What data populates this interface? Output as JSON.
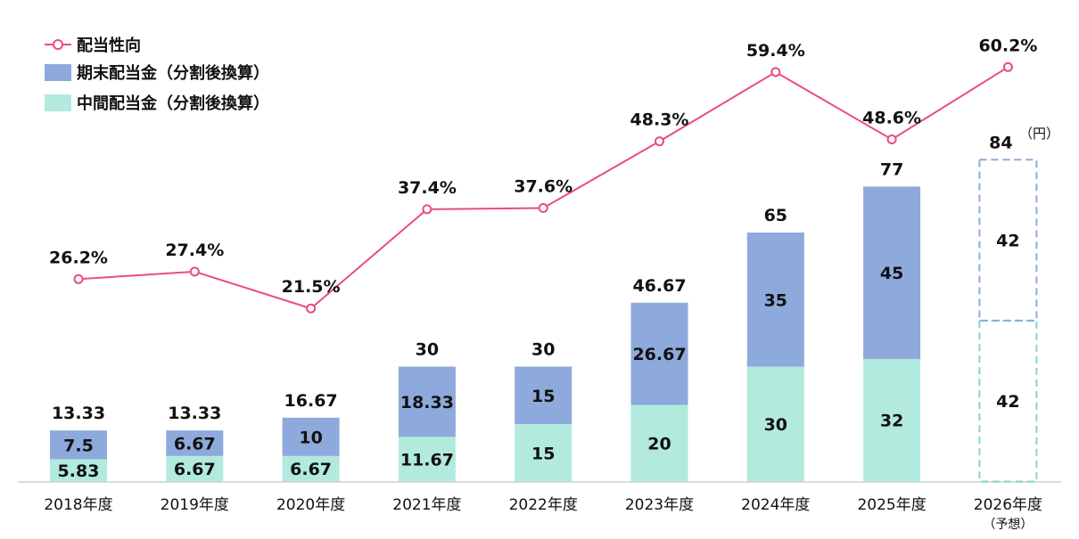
{
  "legend": {
    "payout": "配当性向",
    "year_end": "期末配当金（分割後換算）",
    "interim": "中間配当金（分割後換算）"
  },
  "unit_label": "（円）",
  "colors": {
    "year_end": "#8ea9db",
    "interim": "#b2eade",
    "payout_line": "#ea4d7c",
    "forecast_year_end_border": "#8eaadc",
    "forecast_interim_border": "#7fd8c8",
    "axis": "#cfcfcf",
    "text": "#111111"
  },
  "chart_data": {
    "type": "bar",
    "stacked": true,
    "categories": [
      "2018年度",
      "2019年度",
      "2020年度",
      "2021年度",
      "2022年度",
      "2023年度",
      "2024年度",
      "2025年度",
      "2026年度"
    ],
    "forecast_note": "（予想）",
    "forecast_index": 8,
    "series": [
      {
        "name": "中間配当金（分割後換算）",
        "values": [
          5.83,
          6.67,
          6.67,
          11.67,
          15,
          20,
          30,
          32,
          42
        ],
        "labels": [
          "5.83",
          "6.67",
          "6.67",
          "11.67",
          "15",
          "20",
          "30",
          "32",
          "42"
        ]
      },
      {
        "name": "期末配当金（分割後換算）",
        "values": [
          7.5,
          6.67,
          10,
          18.33,
          15,
          26.67,
          35,
          45,
          42
        ],
        "labels": [
          "7.5",
          "6.67",
          "10",
          "18.33",
          "15",
          "26.67",
          "35",
          "45",
          "42"
        ]
      }
    ],
    "totals": [
      "13.33",
      "13.33",
      "16.67",
      "30",
      "30",
      "46.67",
      "65",
      "77",
      "84"
    ],
    "line": {
      "name": "配当性向",
      "values": [
        26.2,
        27.4,
        21.5,
        37.4,
        37.6,
        48.3,
        59.4,
        48.6,
        60.2
      ],
      "labels": [
        "26.2%",
        "27.4%",
        "21.5%",
        "37.4%",
        "37.6%",
        "48.3%",
        "59.4%",
        "48.6%",
        "60.2%"
      ]
    }
  }
}
